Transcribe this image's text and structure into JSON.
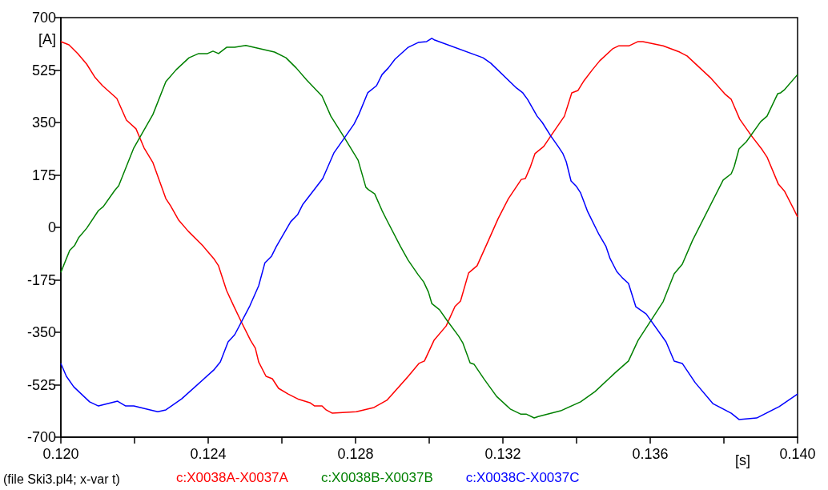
{
  "chart_data": {
    "type": "line",
    "xlabel": "[s]",
    "ylabel": "[A]",
    "annotations": [
      "(file Ski3.pl4; x-var t)"
    ],
    "xlim": [
      0.12,
      0.14
    ],
    "xticks": [
      {
        "value": 0.12,
        "label": "0.120"
      },
      {
        "value": 0.122,
        "label": null
      },
      {
        "value": 0.124,
        "label": "0.124"
      },
      {
        "value": 0.126,
        "label": null
      },
      {
        "value": 0.128,
        "label": "0.128"
      },
      {
        "value": 0.13,
        "label": null
      },
      {
        "value": 0.132,
        "label": "0.132"
      },
      {
        "value": 0.134,
        "label": null
      },
      {
        "value": 0.136,
        "label": "0.136"
      },
      {
        "value": 0.138,
        "label": null
      },
      {
        "value": 0.14,
        "label": "0.140"
      }
    ],
    "ylim": [
      -700,
      700
    ],
    "yticks": [
      -700,
      -525,
      -350,
      -175,
      0,
      175,
      350,
      525,
      700
    ],
    "grid": false,
    "legend": "bottom",
    "marker": "none",
    "line_style": "solid",
    "series": [
      {
        "name": "c:X0038A-X0037A",
        "color": "#ff0000",
        "x": [
          0.12,
          0.12022,
          0.12046,
          0.1207,
          0.12093,
          0.12113,
          0.12152,
          0.12178,
          0.12204,
          0.12226,
          0.1225,
          0.12285,
          0.12298,
          0.1232,
          0.12346,
          0.12385,
          0.12415,
          0.12428,
          0.1245,
          0.1247,
          0.12491,
          0.12515,
          0.12528,
          0.12537,
          0.12557,
          0.12574,
          0.12591,
          0.12617,
          0.12646,
          0.12676,
          0.12689,
          0.12709,
          0.1272,
          0.12737,
          0.12802,
          0.1285,
          0.12885,
          0.12943,
          0.12972,
          0.12987,
          0.13013,
          0.13046,
          0.1307,
          0.13085,
          0.13107,
          0.1313,
          0.13161,
          0.13187,
          0.13215,
          0.1325,
          0.13261,
          0.13274,
          0.13287,
          0.13311,
          0.1333,
          0.13367,
          0.13387,
          0.13404,
          0.1342,
          0.13443,
          0.13463,
          0.13498,
          0.13515,
          0.13543,
          0.13567,
          0.1358,
          0.13635,
          0.1368,
          0.137,
          0.13763,
          0.13802,
          0.1382,
          0.13843,
          0.13874,
          0.13904,
          0.13917,
          0.13948,
          0.13965,
          0.13987,
          0.14
        ],
        "values": [
          620,
          609,
          580,
          545,
          500,
          473,
          430,
          358,
          329,
          265,
          216,
          96,
          72,
          24,
          -13,
          -61,
          -104,
          -128,
          -211,
          -264,
          -318,
          -377,
          -403,
          -449,
          -497,
          -505,
          -537,
          -556,
          -574,
          -585,
          -596,
          -596,
          -609,
          -620,
          -615,
          -601,
          -577,
          -497,
          -454,
          -446,
          -377,
          -329,
          -264,
          -246,
          -152,
          -128,
          -43,
          29,
          96,
          160,
          163,
          200,
          246,
          270,
          305,
          371,
          449,
          457,
          489,
          526,
          556,
          596,
          606,
          606,
          620,
          620,
          606,
          585,
          572,
          500,
          446,
          427,
          361,
          307,
          259,
          235,
          144,
          120,
          67,
          35
        ]
      },
      {
        "name": "c:X0038B-X0037B",
        "color": "#008000",
        "x": [
          0.12,
          0.12024,
          0.12037,
          0.12048,
          0.1207,
          0.12102,
          0.12115,
          0.12146,
          0.12157,
          0.12198,
          0.1225,
          0.12285,
          0.12313,
          0.12348,
          0.12374,
          0.12398,
          0.12413,
          0.12428,
          0.1245,
          0.12472,
          0.12502,
          0.1258,
          0.12611,
          0.12639,
          0.12667,
          0.12709,
          0.12733,
          0.1277,
          0.12807,
          0.12828,
          0.12835,
          0.12852,
          0.12872,
          0.12885,
          0.12922,
          0.12943,
          0.1297,
          0.12985,
          0.12998,
          0.13007,
          0.13028,
          0.13048,
          0.1308,
          0.13091,
          0.13111,
          0.13122,
          0.1315,
          0.13183,
          0.1322,
          0.13248,
          0.13263,
          0.13285,
          0.13296,
          0.13357,
          0.13411,
          0.1345,
          0.13504,
          0.13541,
          0.13567,
          0.13635,
          0.13665,
          0.13687,
          0.13715,
          0.13798,
          0.1382,
          0.13828,
          0.13841,
          0.13861,
          0.139,
          0.13917,
          0.13946,
          0.13954,
          0.13965,
          0.14
        ],
        "values": [
          -150,
          -77,
          -61,
          -35,
          -3,
          56,
          69,
          123,
          139,
          265,
          377,
          486,
          526,
          566,
          580,
          580,
          588,
          580,
          601,
          601,
          607,
          585,
          566,
          532,
          492,
          438,
          371,
          299,
          224,
          134,
          126,
          112,
          56,
          24,
          -64,
          -110,
          -158,
          -182,
          -216,
          -254,
          -275,
          -310,
          -363,
          -385,
          -452,
          -457,
          -508,
          -564,
          -606,
          -623,
          -623,
          -636,
          -631,
          -612,
          -582,
          -548,
          -486,
          -446,
          -377,
          -248,
          -155,
          -123,
          -43,
          158,
          179,
          203,
          262,
          286,
          353,
          371,
          446,
          449,
          460,
          510
        ]
      },
      {
        "name": "c:X0038C-X0037C",
        "color": "#0000ff",
        "x": [
          0.12,
          0.12015,
          0.12035,
          0.12078,
          0.12102,
          0.12154,
          0.12176,
          0.12198,
          0.12263,
          0.12285,
          0.12328,
          0.12415,
          0.12433,
          0.12454,
          0.12472,
          0.12513,
          0.12537,
          0.12554,
          0.12572,
          0.12585,
          0.12624,
          0.12643,
          0.12657,
          0.12711,
          0.12741,
          0.1277,
          0.12796,
          0.12809,
          0.12833,
          0.12857,
          0.12872,
          0.12889,
          0.12907,
          0.12943,
          0.1297,
          0.12993,
          0.13007,
          0.13015,
          0.13146,
          0.13167,
          0.13237,
          0.13254,
          0.13267,
          0.13293,
          0.13307,
          0.1333,
          0.1335,
          0.13363,
          0.13372,
          0.13385,
          0.134,
          0.13411,
          0.1343,
          0.13461,
          0.1348,
          0.13491,
          0.13509,
          0.13524,
          0.13541,
          0.13561,
          0.13589,
          0.13643,
          0.13665,
          0.13687,
          0.13722,
          0.1377,
          0.1382,
          0.13841,
          0.13889,
          0.1395,
          0.14
        ],
        "values": [
          -454,
          -497,
          -532,
          -582,
          -596,
          -580,
          -596,
          -596,
          -615,
          -609,
          -572,
          -476,
          -449,
          -382,
          -358,
          -262,
          -195,
          -118,
          -96,
          -64,
          19,
          43,
          77,
          163,
          248,
          299,
          345,
          377,
          449,
          473,
          510,
          532,
          561,
          601,
          617,
          620,
          631,
          625,
          566,
          548,
          465,
          449,
          427,
          371,
          350,
          305,
          270,
          246,
          219,
          155,
          136,
          115,
          53,
          -24,
          -64,
          -104,
          -147,
          -168,
          -187,
          -265,
          -289,
          -382,
          -446,
          -454,
          -518,
          -588,
          -620,
          -641,
          -636,
          -598,
          -556
        ]
      }
    ]
  }
}
